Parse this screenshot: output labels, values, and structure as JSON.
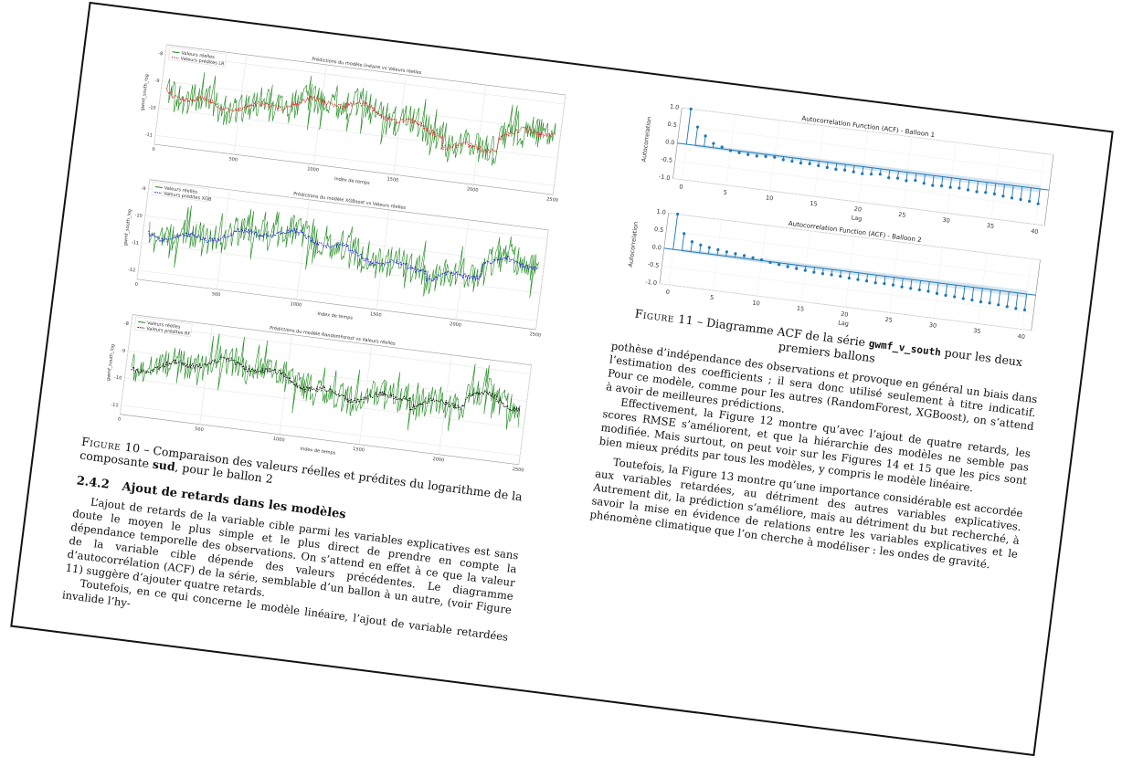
{
  "figure10": {
    "plots": [
      {
        "title": "Prédictions du modèle linéaire vs Valeurs réelles",
        "legend": [
          "Valeurs réelles",
          "Valeurs prédites LR"
        ],
        "xlabel": "Index de temps",
        "ylabel": "gwmf_south_log",
        "yticks": [
          "-8",
          "-9",
          "-10",
          "-11"
        ],
        "xticks": [
          "0",
          "500",
          "1000",
          "1500",
          "2000",
          "2500"
        ],
        "pred_color": "#d62728"
      },
      {
        "title": "Prédictions du modèle XGBoost vs Valeurs réelles",
        "legend": [
          "Valeurs réelles",
          "Valeurs prédites XGB"
        ],
        "xlabel": "Index de temps",
        "ylabel": "gwmf_south_log",
        "yticks": [
          "-9",
          "-10",
          "-11",
          "-12"
        ],
        "xticks": [
          "0",
          "500",
          "1000",
          "1500",
          "2000",
          "2500"
        ],
        "pred_color": "#1f1fd6"
      },
      {
        "title": "Prédictions du modèle RandomForest vs Valeurs réelles",
        "legend": [
          "Valeurs réelles",
          "Valeurs prédites RF"
        ],
        "xlabel": "Index de temps",
        "ylabel": "gwmf_south_log",
        "yticks": [
          "-8",
          "-9",
          "-10",
          "-11"
        ],
        "xticks": [
          "0",
          "500",
          "1000",
          "1500",
          "2000",
          "2500"
        ],
        "pred_color": "#111111"
      }
    ],
    "real_color": "#1a8a1a",
    "caption_label": "Figure 10",
    "caption_text": " – Comparaison des valeurs réelles et prédites du logarithme de la composante ",
    "caption_bold": "sud",
    "caption_end": ", pour le ballon 2"
  },
  "section": {
    "number": "2.4.2",
    "title": "Ajout de retards dans les modèles"
  },
  "left_paragraphs": [
    "L’ajout de retards de la variable cible parmi les variables explicatives est sans doute le moyen le plus simple et le plus direct de prendre en compte la dépendance temporelle des observations. On s’attend en effet à ce que la valeur de la variable cible dépende des valeurs précédentes. Le diagramme d’autocorrélation (ACF) de la série, semblable d’un ballon à un autre, (voir Figure 11) suggère d’ajouter quatre retards.",
    "Toutefois, en ce qui concerne le modèle linéaire, l’ajout de variable retardées invalide l’hy-"
  ],
  "figure11": {
    "acf_plots": [
      {
        "title": "Autocorrelation Function (ACF) - Balloon 1",
        "ylabel": "Autocorrelation",
        "xlabel": "Lag",
        "values": [
          1.0,
          0.52,
          0.3,
          0.12,
          0.05,
          -0.02,
          -0.05,
          -0.07,
          -0.08,
          -0.06,
          -0.05,
          -0.09,
          -0.1,
          -0.12,
          -0.11,
          -0.13,
          -0.15,
          -0.17,
          -0.16,
          -0.18,
          -0.2,
          -0.18,
          -0.15,
          -0.22,
          -0.2,
          -0.24,
          -0.2,
          -0.25,
          -0.28,
          -0.26,
          -0.27,
          -0.26,
          -0.28,
          -0.3,
          -0.29,
          -0.3,
          -0.33,
          -0.35,
          -0.36,
          -0.38,
          -0.42
        ]
      },
      {
        "title": "Autocorrelation Function (ACF) - Balloon 2",
        "ylabel": "Autocorrelation",
        "xlabel": "Lag",
        "values": [
          1.0,
          0.48,
          0.28,
          0.22,
          0.18,
          0.15,
          0.12,
          0.1,
          0.08,
          0.05,
          0.02,
          -0.02,
          -0.05,
          -0.08,
          -0.1,
          -0.12,
          -0.14,
          -0.15,
          -0.15,
          -0.16,
          -0.18,
          -0.19,
          -0.2,
          -0.22,
          -0.21,
          -0.22,
          -0.24,
          -0.25,
          -0.26,
          -0.27,
          -0.3,
          -0.32,
          -0.33,
          -0.35,
          -0.36,
          -0.38,
          -0.38,
          -0.4,
          -0.42,
          -0.44,
          -0.45
        ]
      }
    ],
    "yticks": [
      "1.0",
      "0.5",
      "0.0",
      "-0.5",
      "-1.0"
    ],
    "xticks": [
      "0",
      "5",
      "10",
      "15",
      "20",
      "25",
      "30",
      "35",
      "40"
    ],
    "stem_color": "#1f77b4",
    "caption_label": "Figure 11",
    "caption_text": " – Diagramme ACF de la série ",
    "caption_code": "gwmf_v_south",
    "caption_end": " pour les deux premiers ballons"
  },
  "right_paragraphs": [
    "pothèse d’indépendance des observations et provoque en général un biais dans l’estimation des coefficients ; il sera donc utilisé seulement à titre indicatif. Pour ce modèle, comme pour les autres (RandomForest, XGBoost), on s’attend à avoir de meilleures prédictions.",
    "Effectivement, la Figure 12 montre qu’avec l’ajout de quatre retards, les scores RMSE s’améliorent, et que la hiérarchie des modèles ne semble pas modifiée. Mais surtout, on peut voir sur les Figures 14 et 15 que les pics sont bien mieux prédits par tous les modèles, y compris le modèle linéaire.",
    "Toutefois, la Figure 13 montre qu’une importance considérable est accordée aux variables retardées, au détriment des autres variables explicatives. Autrement dit, la prédiction s’améliore, mais au détriment du but recherché, à savoir la mise en évidence de relations entre les variables explicatives et le phénomène climatique que l’on cherche à modéliser : les ondes de gravité."
  ]
}
